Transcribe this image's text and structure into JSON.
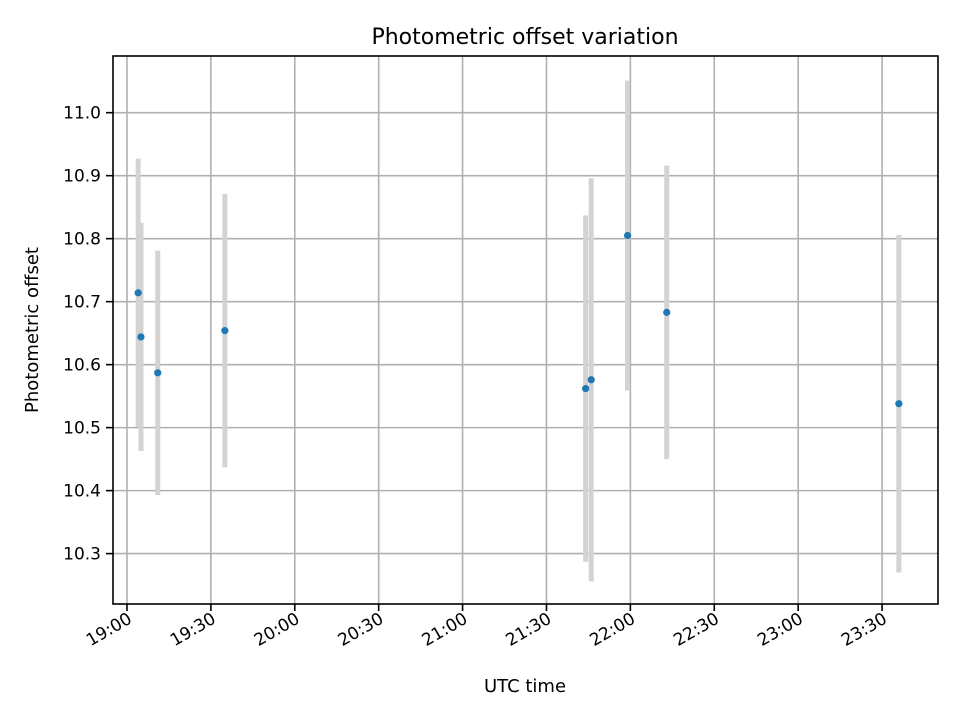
{
  "chart_data": {
    "type": "scatter",
    "title": "Photometric offset variation",
    "xlabel": "UTC time",
    "ylabel": "Photometric offset",
    "x_axis_type": "time",
    "xlim": [
      "18:55",
      "23:50"
    ],
    "ylim": [
      10.22,
      11.09
    ],
    "xticks": [
      "19:00",
      "19:30",
      "20:00",
      "20:30",
      "21:00",
      "21:30",
      "22:00",
      "22:30",
      "23:00",
      "23:30"
    ],
    "yticks": [
      10.3,
      10.4,
      10.5,
      10.6,
      10.7,
      10.8,
      10.9,
      11.0
    ],
    "ytick_labels": [
      "10.3",
      "10.4",
      "10.5",
      "10.6",
      "10.7",
      "10.8",
      "10.9",
      "11.0"
    ],
    "grid": true,
    "marker_color": "#1f77b4",
    "errorbar_color": "#d3d3d3",
    "points": [
      {
        "x": "19:04",
        "y": 10.714,
        "err": 0.213
      },
      {
        "x": "19:05",
        "y": 10.644,
        "err": 0.181
      },
      {
        "x": "19:11",
        "y": 10.587,
        "err": 0.194
      },
      {
        "x": "19:35",
        "y": 10.654,
        "err": 0.217
      },
      {
        "x": "21:44",
        "y": 10.562,
        "err": 0.275
      },
      {
        "x": "21:46",
        "y": 10.576,
        "err": 0.32
      },
      {
        "x": "21:59",
        "y": 10.805,
        "err": 0.246
      },
      {
        "x": "22:13",
        "y": 10.683,
        "err": 0.233
      },
      {
        "x": "23:36",
        "y": 10.538,
        "err": 0.268
      }
    ]
  }
}
